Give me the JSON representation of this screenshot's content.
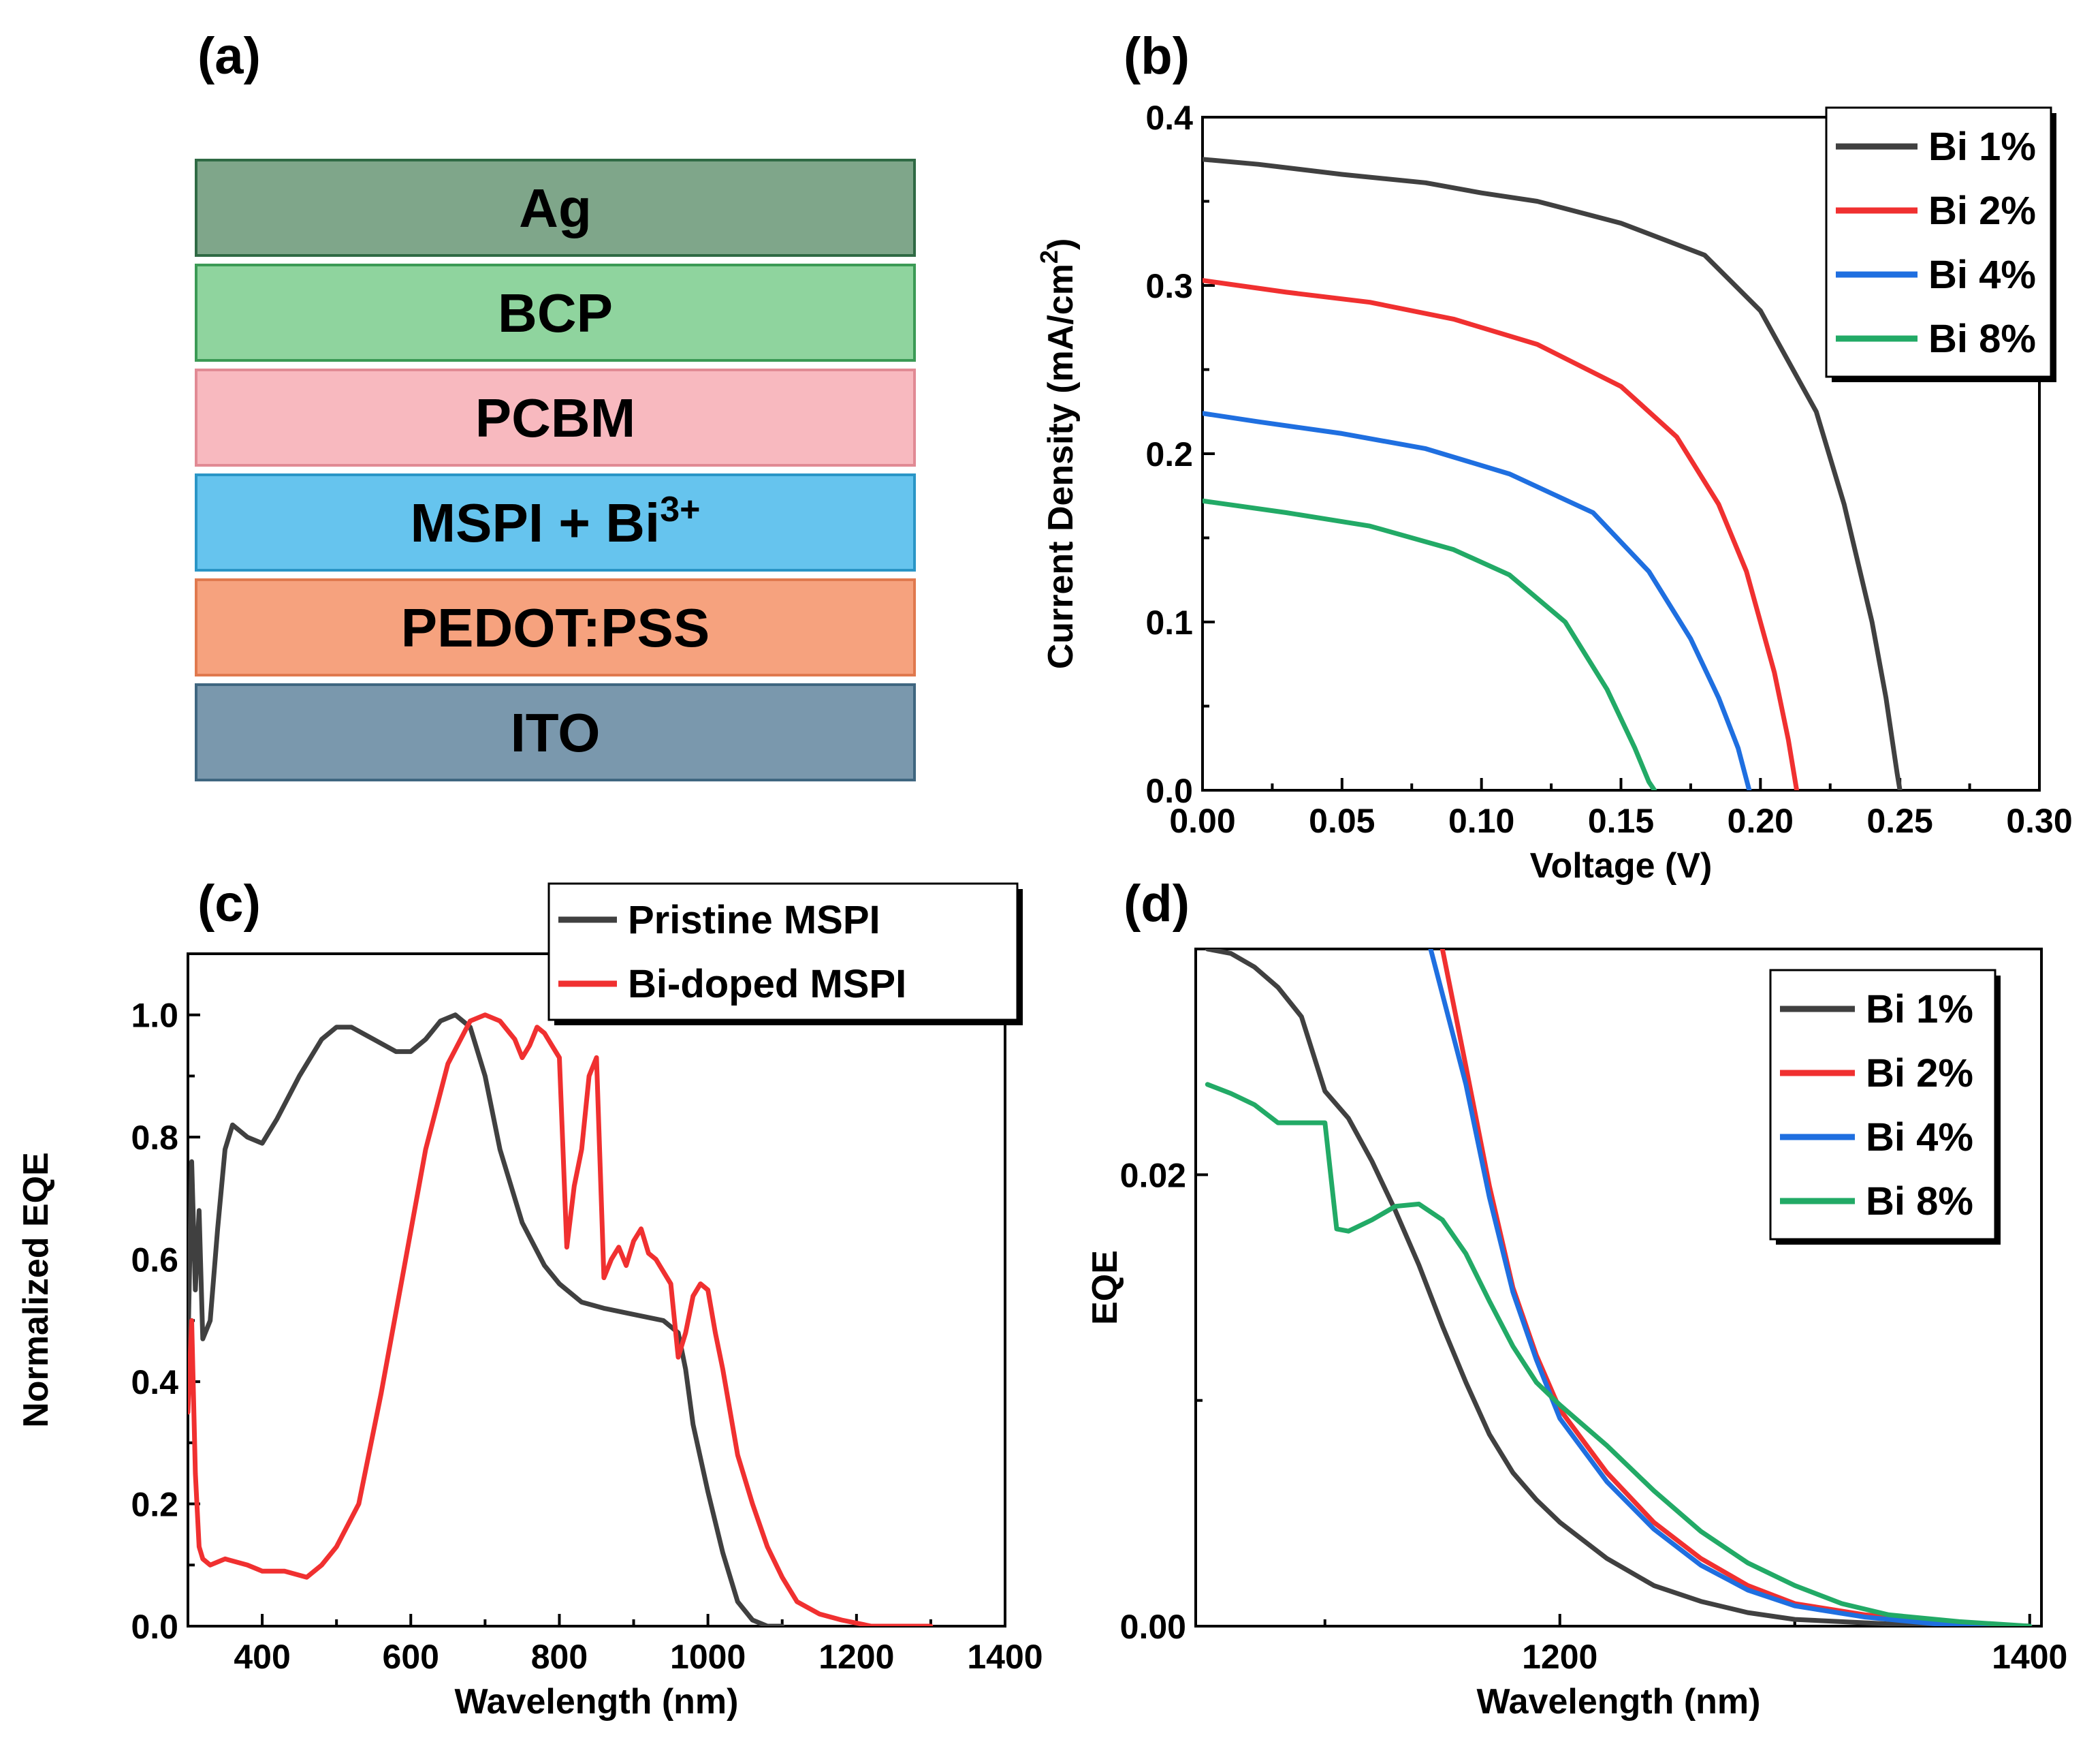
{
  "colors": {
    "black_series": "#404040",
    "red_series": "#f03030",
    "blue_series": "#1f6fe0",
    "green_series": "#22aa66"
  },
  "panel_a": {
    "label": "(a)",
    "layers": [
      {
        "name": "Ag",
        "sup": "",
        "fill": "#7fa68a",
        "border": "#2f6a44"
      },
      {
        "name": "BCP",
        "sup": "",
        "fill": "#8fd49e",
        "border": "#3b9a55"
      },
      {
        "name": "PCBM",
        "sup": "",
        "fill": "#f8b9bf",
        "border": "#e18a94"
      },
      {
        "name": "MSPI + Bi",
        "sup": "3+",
        "fill": "#66c4ee",
        "border": "#2a95c6"
      },
      {
        "name": "PEDOT:PSS",
        "sup": "",
        "fill": "#f6a27e",
        "border": "#e0794e"
      },
      {
        "name": "ITO",
        "sup": "",
        "fill": "#7a98ad",
        "border": "#3f6680"
      }
    ]
  },
  "chart_data": [
    {
      "id": "b",
      "label": "(b)",
      "type": "line",
      "xlabel": "Voltage (V)",
      "ylabel": "Current Density (mA/cm",
      "ylabel_sup": "2",
      "ylabel_end": ")",
      "xlim": [
        0,
        0.3
      ],
      "ylim": [
        0,
        0.4
      ],
      "xticks": [
        0.0,
        0.05,
        0.1,
        0.15,
        0.2,
        0.25,
        0.3
      ],
      "xtick_labels": [
        "0.00",
        "0.05",
        "0.10",
        "0.15",
        "0.20",
        "0.25",
        "0.30"
      ],
      "yticks": [
        0.0,
        0.1,
        0.2,
        0.3,
        0.4
      ],
      "ytick_labels": [
        "0.0",
        "0.1",
        "0.2",
        "0.3",
        "0.4"
      ],
      "legend_position": "top-right",
      "series": [
        {
          "name": "Bi 1%",
          "color": "#404040",
          "x": [
            0,
            0.02,
            0.05,
            0.08,
            0.1,
            0.12,
            0.15,
            0.18,
            0.2,
            0.22,
            0.23,
            0.24,
            0.245,
            0.249,
            0.25
          ],
          "y": [
            0.375,
            0.372,
            0.366,
            0.361,
            0.355,
            0.35,
            0.337,
            0.318,
            0.285,
            0.225,
            0.17,
            0.1,
            0.055,
            0.01,
            0.0
          ]
        },
        {
          "name": "Bi 2%",
          "color": "#f03030",
          "x": [
            0,
            0.03,
            0.06,
            0.09,
            0.12,
            0.15,
            0.17,
            0.185,
            0.195,
            0.205,
            0.21,
            0.213
          ],
          "y": [
            0.303,
            0.296,
            0.29,
            0.28,
            0.265,
            0.24,
            0.21,
            0.17,
            0.13,
            0.07,
            0.03,
            0.0
          ]
        },
        {
          "name": "Bi 4%",
          "color": "#1f6fe0",
          "x": [
            0,
            0.02,
            0.05,
            0.08,
            0.11,
            0.14,
            0.16,
            0.175,
            0.185,
            0.192,
            0.196
          ],
          "y": [
            0.224,
            0.219,
            0.212,
            0.203,
            0.188,
            0.165,
            0.13,
            0.09,
            0.055,
            0.025,
            0.0
          ]
        },
        {
          "name": "Bi 8%",
          "color": "#22aa66",
          "x": [
            0,
            0.03,
            0.06,
            0.09,
            0.11,
            0.13,
            0.145,
            0.155,
            0.16,
            0.162
          ],
          "y": [
            0.172,
            0.165,
            0.157,
            0.143,
            0.128,
            0.1,
            0.06,
            0.025,
            0.005,
            0.0
          ]
        }
      ]
    },
    {
      "id": "c",
      "label": "(c)",
      "type": "line",
      "xlabel": "Wavelength (nm)",
      "ylabel": "Normalized EQE",
      "xlim": [
        300,
        1400
      ],
      "ylim": [
        0,
        1.1
      ],
      "xticks": [
        400,
        600,
        800,
        1000,
        1200,
        1400
      ],
      "xtick_labels": [
        "400",
        "600",
        "800",
        "1000",
        "1200",
        "1400"
      ],
      "yticks": [
        0.0,
        0.2,
        0.4,
        0.6,
        0.8,
        1.0
      ],
      "ytick_labels": [
        "0.0",
        "0.2",
        "0.4",
        "0.6",
        "0.8",
        "1.0"
      ],
      "legend_position": "top-right",
      "series": [
        {
          "name": "Pristine MSPI",
          "color": "#404040",
          "x": [
            300,
            305,
            310,
            315,
            320,
            330,
            340,
            350,
            360,
            370,
            380,
            400,
            420,
            450,
            480,
            500,
            520,
            550,
            580,
            600,
            620,
            640,
            660,
            680,
            700,
            720,
            750,
            780,
            800,
            830,
            860,
            900,
            940,
            960,
            970,
            980,
            1000,
            1020,
            1040,
            1060,
            1080,
            1100
          ],
          "y": [
            0.45,
            0.76,
            0.55,
            0.68,
            0.47,
            0.5,
            0.65,
            0.78,
            0.82,
            0.81,
            0.8,
            0.79,
            0.83,
            0.9,
            0.96,
            0.98,
            0.98,
            0.96,
            0.94,
            0.94,
            0.96,
            0.99,
            1.0,
            0.98,
            0.9,
            0.78,
            0.66,
            0.59,
            0.56,
            0.53,
            0.52,
            0.51,
            0.5,
            0.48,
            0.42,
            0.33,
            0.22,
            0.12,
            0.04,
            0.01,
            0.0,
            0.0
          ]
        },
        {
          "name": "Bi-doped MSPI",
          "color": "#f03030",
          "x": [
            300,
            305,
            310,
            315,
            320,
            330,
            350,
            380,
            400,
            430,
            460,
            480,
            500,
            530,
            560,
            590,
            620,
            650,
            680,
            700,
            720,
            740,
            750,
            760,
            770,
            780,
            790,
            800,
            810,
            820,
            830,
            840,
            850,
            860,
            870,
            880,
            890,
            900,
            910,
            920,
            930,
            940,
            950,
            960,
            970,
            980,
            990,
            1000,
            1010,
            1020,
            1030,
            1040,
            1060,
            1080,
            1100,
            1120,
            1150,
            1180,
            1220,
            1260,
            1300
          ],
          "y": [
            0.35,
            0.5,
            0.25,
            0.13,
            0.11,
            0.1,
            0.11,
            0.1,
            0.09,
            0.09,
            0.08,
            0.1,
            0.13,
            0.2,
            0.38,
            0.58,
            0.78,
            0.92,
            0.99,
            1.0,
            0.99,
            0.96,
            0.93,
            0.95,
            0.98,
            0.97,
            0.95,
            0.93,
            0.62,
            0.72,
            0.78,
            0.9,
            0.93,
            0.57,
            0.6,
            0.62,
            0.59,
            0.63,
            0.65,
            0.61,
            0.6,
            0.58,
            0.56,
            0.44,
            0.48,
            0.54,
            0.56,
            0.55,
            0.48,
            0.42,
            0.35,
            0.28,
            0.2,
            0.13,
            0.08,
            0.04,
            0.02,
            0.01,
            0.0,
            0.0,
            0.0
          ]
        }
      ]
    },
    {
      "id": "d",
      "label": "(d)",
      "type": "line",
      "xlabel": "Wavelength (nm)",
      "ylabel": "EQE",
      "xlim": [
        1045,
        1405
      ],
      "ylim": [
        0,
        0.03
      ],
      "xticks": [
        1200,
        1400
      ],
      "xtick_labels": [
        "1200",
        "1400"
      ],
      "yticks": [
        0.0,
        0.02
      ],
      "ytick_labels": [
        "0.00",
        "0.02"
      ],
      "minor_yticks": [
        0.01
      ],
      "legend_position": "top-right",
      "series": [
        {
          "name": "Bi 1%",
          "color": "#404040",
          "x": [
            1050,
            1060,
            1070,
            1080,
            1090,
            1100,
            1110,
            1120,
            1130,
            1140,
            1150,
            1160,
            1170,
            1180,
            1190,
            1200,
            1220,
            1240,
            1260,
            1280,
            1300,
            1340,
            1400
          ],
          "y": [
            0.03,
            0.0298,
            0.0292,
            0.0283,
            0.027,
            0.0237,
            0.0225,
            0.0206,
            0.0184,
            0.016,
            0.0133,
            0.0108,
            0.0085,
            0.0068,
            0.0056,
            0.0046,
            0.003,
            0.0018,
            0.0011,
            0.0006,
            0.0003,
            0.0001,
            0.0
          ]
        },
        {
          "name": "Bi 2%",
          "color": "#f03030",
          "x": [
            1150,
            1160,
            1170,
            1180,
            1190,
            1200,
            1220,
            1240,
            1260,
            1280,
            1300,
            1330,
            1360,
            1400
          ],
          "y": [
            0.03,
            0.0248,
            0.0195,
            0.015,
            0.012,
            0.0096,
            0.0068,
            0.0046,
            0.003,
            0.0018,
            0.001,
            0.0005,
            0.0002,
            0.0
          ]
        },
        {
          "name": "Bi 4%",
          "color": "#1f6fe0",
          "x": [
            1145,
            1160,
            1170,
            1180,
            1190,
            1200,
            1220,
            1240,
            1260,
            1280,
            1300,
            1330,
            1360,
            1400
          ],
          "y": [
            0.03,
            0.024,
            0.019,
            0.0148,
            0.0118,
            0.0092,
            0.0064,
            0.0043,
            0.0027,
            0.0016,
            0.0009,
            0.0004,
            0.0001,
            0.0
          ]
        },
        {
          "name": "Bi 8%",
          "color": "#22aa66",
          "x": [
            1050,
            1060,
            1070,
            1080,
            1100,
            1105,
            1110,
            1120,
            1130,
            1140,
            1150,
            1160,
            1170,
            1180,
            1190,
            1200,
            1220,
            1240,
            1260,
            1280,
            1300,
            1320,
            1340,
            1370,
            1400
          ],
          "y": [
            0.024,
            0.0236,
            0.0231,
            0.0223,
            0.0223,
            0.0176,
            0.0175,
            0.018,
            0.0186,
            0.0187,
            0.018,
            0.0165,
            0.0144,
            0.0124,
            0.0108,
            0.0098,
            0.008,
            0.006,
            0.0042,
            0.0028,
            0.0018,
            0.001,
            0.0005,
            0.0002,
            0.0
          ]
        }
      ]
    }
  ]
}
